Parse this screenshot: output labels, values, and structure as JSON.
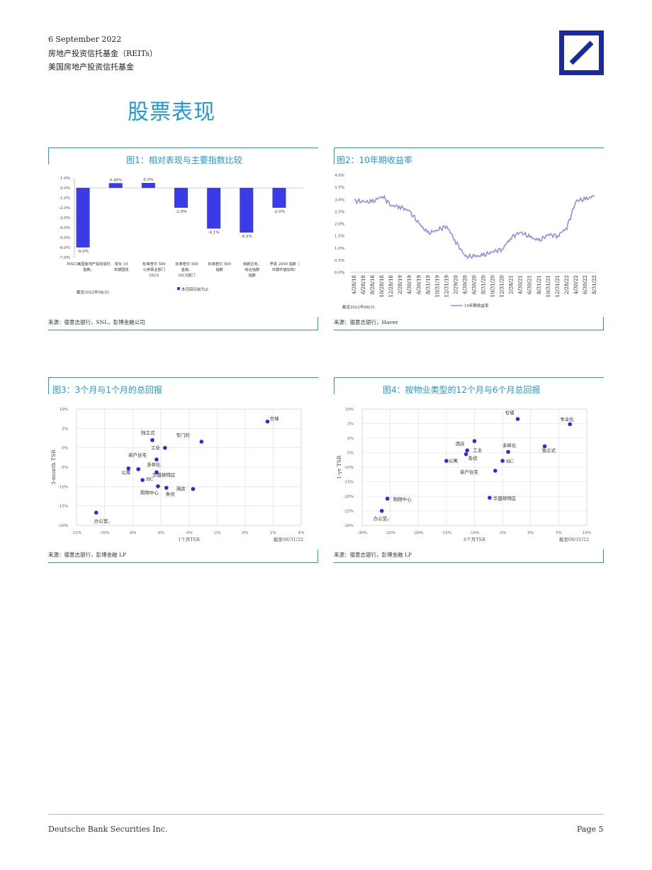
{
  "header": {
    "date": "6 September 2022",
    "line2": "房地产投资信托基金（REITs）",
    "line3": "美国房地产投资信托基金"
  },
  "section_title": "股票表现",
  "figures": {
    "fig1": {
      "title": "图1：相对表现与主要指数比较",
      "source": "来源：德意志银行，SNL，彭博金融公司",
      "note": "截至2022年08/31",
      "legend": "本月回日前为止"
    },
    "fig2": {
      "title": "图2：10年期收益率",
      "source": "来源：德意志银行，Haver",
      "note": "截至2022年08/31",
      "legend": "10年期收益率"
    },
    "fig3": {
      "title": "图3：3个月与1个月的总回报",
      "source": "来源：德意志银行，彭博金融 LP",
      "note": "截至08/31/22"
    },
    "fig4": {
      "title": "图4：按物业类型的12个月与6个月总回报",
      "source": "来源：德意志银行，彭博金融 LP",
      "note": "截至08/31/22"
    }
  },
  "chart_data": [
    {
      "type": "bar",
      "title": "图1：相对表现与主要指数比较",
      "categories": [
        [
          "MSCI美国房地产投资信托",
          "指数。"
        ],
        [
          "变化 10",
          "年期国债"
        ],
        [
          "标准普尔 500",
          "公用事业部门",
          "GICS"
        ],
        [
          "标准普尔 500",
          "金融。",
          "GICS部门"
        ],
        [
          "标准普尔 500",
          "指数"
        ],
        [
          "纳斯达克。",
          "综合指数",
          "指数"
        ],
        [
          "罗素 2000 指数（",
          "日期市值加权）"
        ]
      ],
      "values": [
        -6.0,
        0.48,
        0.5,
        -2.0,
        -4.1,
        -4.5,
        -2.0
      ],
      "data_labels": [
        "-6.0%",
        "0.48%",
        "0.5%",
        "-2.0%",
        "-4.1%",
        "-4.5%",
        "-2.0%"
      ],
      "series": [
        {
          "name": "本月回日前为止"
        }
      ],
      "ylim": [
        -7,
        1
      ],
      "yticks": [
        "1.0%",
        "0.0%",
        "-1.0%",
        "-2.0%",
        "-3.0%",
        "-4.0%",
        "-5.0%",
        "-6.0%",
        "-7.0%"
      ],
      "color": "#3a3ae8"
    },
    {
      "type": "line",
      "title": "图2：10年期收益率",
      "series": [
        {
          "name": "10年期收益率"
        }
      ],
      "x_ticks": [
        "4/28/18",
        "6/28/18",
        "8/28/18",
        "10/28/18",
        "12/28/18",
        "2/28/19",
        "4/30/19",
        "6/30/19",
        "8/31/19",
        "10/31/19",
        "12/31/19",
        "2/29/20",
        "4/30/20",
        "6/30/20",
        "8/31/20",
        "10/31/20",
        "12/31/20",
        "2/28/21",
        "4/30/21",
        "6/30/21",
        "8/31/21",
        "10/31/21",
        "12/31/21",
        "2/28/22",
        "4/30/22",
        "6/30/22",
        "8/31/22"
      ],
      "values": [
        2.95,
        2.9,
        2.9,
        3.15,
        2.75,
        2.7,
        2.5,
        2.0,
        1.6,
        1.75,
        1.9,
        1.25,
        0.65,
        0.65,
        0.7,
        0.85,
        0.95,
        1.45,
        1.65,
        1.45,
        1.3,
        1.55,
        1.5,
        1.85,
        2.95,
        3.0,
        3.15
      ],
      "ylim": [
        0,
        4
      ],
      "yticks": [
        "4.0%",
        "3.5%",
        "3.0%",
        "2.5%",
        "2.0%",
        "1.5%",
        "1.0%",
        "0.5%",
        "0.0%"
      ],
      "color": "#8e8ef0"
    },
    {
      "type": "scatter",
      "title": "图3：3个月与1个月的总回报",
      "xlabel": "1个月TSR",
      "ylabel": "3-month TSR",
      "xlim": [
        -12,
        4
      ],
      "ylim": [
        -20,
        10
      ],
      "xticks": [
        "-12%",
        "-10%",
        "-8%",
        "-6%",
        "-4%",
        "-2%",
        "0%",
        "2%",
        "4%"
      ],
      "yticks": [
        "10%",
        "5%",
        "0%",
        "-5%",
        "-10%",
        "-15%",
        "-20%"
      ],
      "points": [
        {
          "label": "仓储",
          "x": 1.6,
          "y": 6.8
        },
        {
          "label": "独立式",
          "x": -6.6,
          "y": 2.0
        },
        {
          "label": "专门的",
          "x": -3.1,
          "y": 1.6
        },
        {
          "label": "工业",
          "x": -5.7,
          "y": 0.0
        },
        {
          "label": "单户住宅",
          "x": -6.3,
          "y": -3.0
        },
        {
          "label": "多样化",
          "x": -7.6,
          "y": -5.5
        },
        {
          "label": "公寓",
          "x": -8.3,
          "y": -5.3
        },
        {
          "label": "华盛顿特区",
          "x": -6.3,
          "y": -6.3
        },
        {
          "label": "HC",
          "x": -7.3,
          "y": -8.3
        },
        {
          "label": "购物中心",
          "x": -6.2,
          "y": -9.9
        },
        {
          "label": "条纹",
          "x": -5.6,
          "y": -10.3
        },
        {
          "label": "酒店",
          "x": -3.7,
          "y": -10.6
        },
        {
          "label": "办公室。",
          "x": -10.6,
          "y": -16.7
        }
      ],
      "color": "#2b2be6"
    },
    {
      "type": "scatter",
      "title": "图4：按物业类型的12个月与6个月总回报",
      "xlabel": "6个月TSR",
      "ylabel": "1-yr TSR",
      "xlim": [
        -30,
        10
      ],
      "ylim": [
        -30,
        10
      ],
      "xticks": [
        "-30%",
        "-25%",
        "-20%",
        "-15%",
        "-10%",
        "-5%",
        "0%",
        "5%",
        "10%"
      ],
      "yticks": [
        "10%",
        "5%",
        "0%",
        "-5%",
        "-10%",
        "-15%",
        "-20%",
        "-25%",
        "-30%"
      ],
      "points": [
        {
          "label": "仓储",
          "x": -2.3,
          "y": 6.6
        },
        {
          "label": "专业化",
          "x": 7.0,
          "y": 4.8
        },
        {
          "label": "酒店",
          "x": -10.0,
          "y": -1.0
        },
        {
          "label": "工业",
          "x": -11.3,
          "y": -4.2
        },
        {
          "label": "多样化",
          "x": -4.0,
          "y": -4.7
        },
        {
          "label": "独立式",
          "x": 2.5,
          "y": -2.8
        },
        {
          "label": "条纹",
          "x": -11.5,
          "y": -5.5
        },
        {
          "label": "公寓",
          "x": -15.0,
          "y": -7.8
        },
        {
          "label": "HC",
          "x": -5.0,
          "y": -7.8
        },
        {
          "label": "单户住宅",
          "x": -6.3,
          "y": -11.2
        },
        {
          "label": "华盛顿特区",
          "x": -7.3,
          "y": -20.5
        },
        {
          "label": "购物中心",
          "x": -25.5,
          "y": -20.8
        },
        {
          "label": "办公室。",
          "x": -26.5,
          "y": -25.0
        }
      ],
      "color": "#2b2be6"
    }
  ],
  "footer": {
    "company": "Deutsche Bank Securities Inc.",
    "page": "Page 5"
  }
}
